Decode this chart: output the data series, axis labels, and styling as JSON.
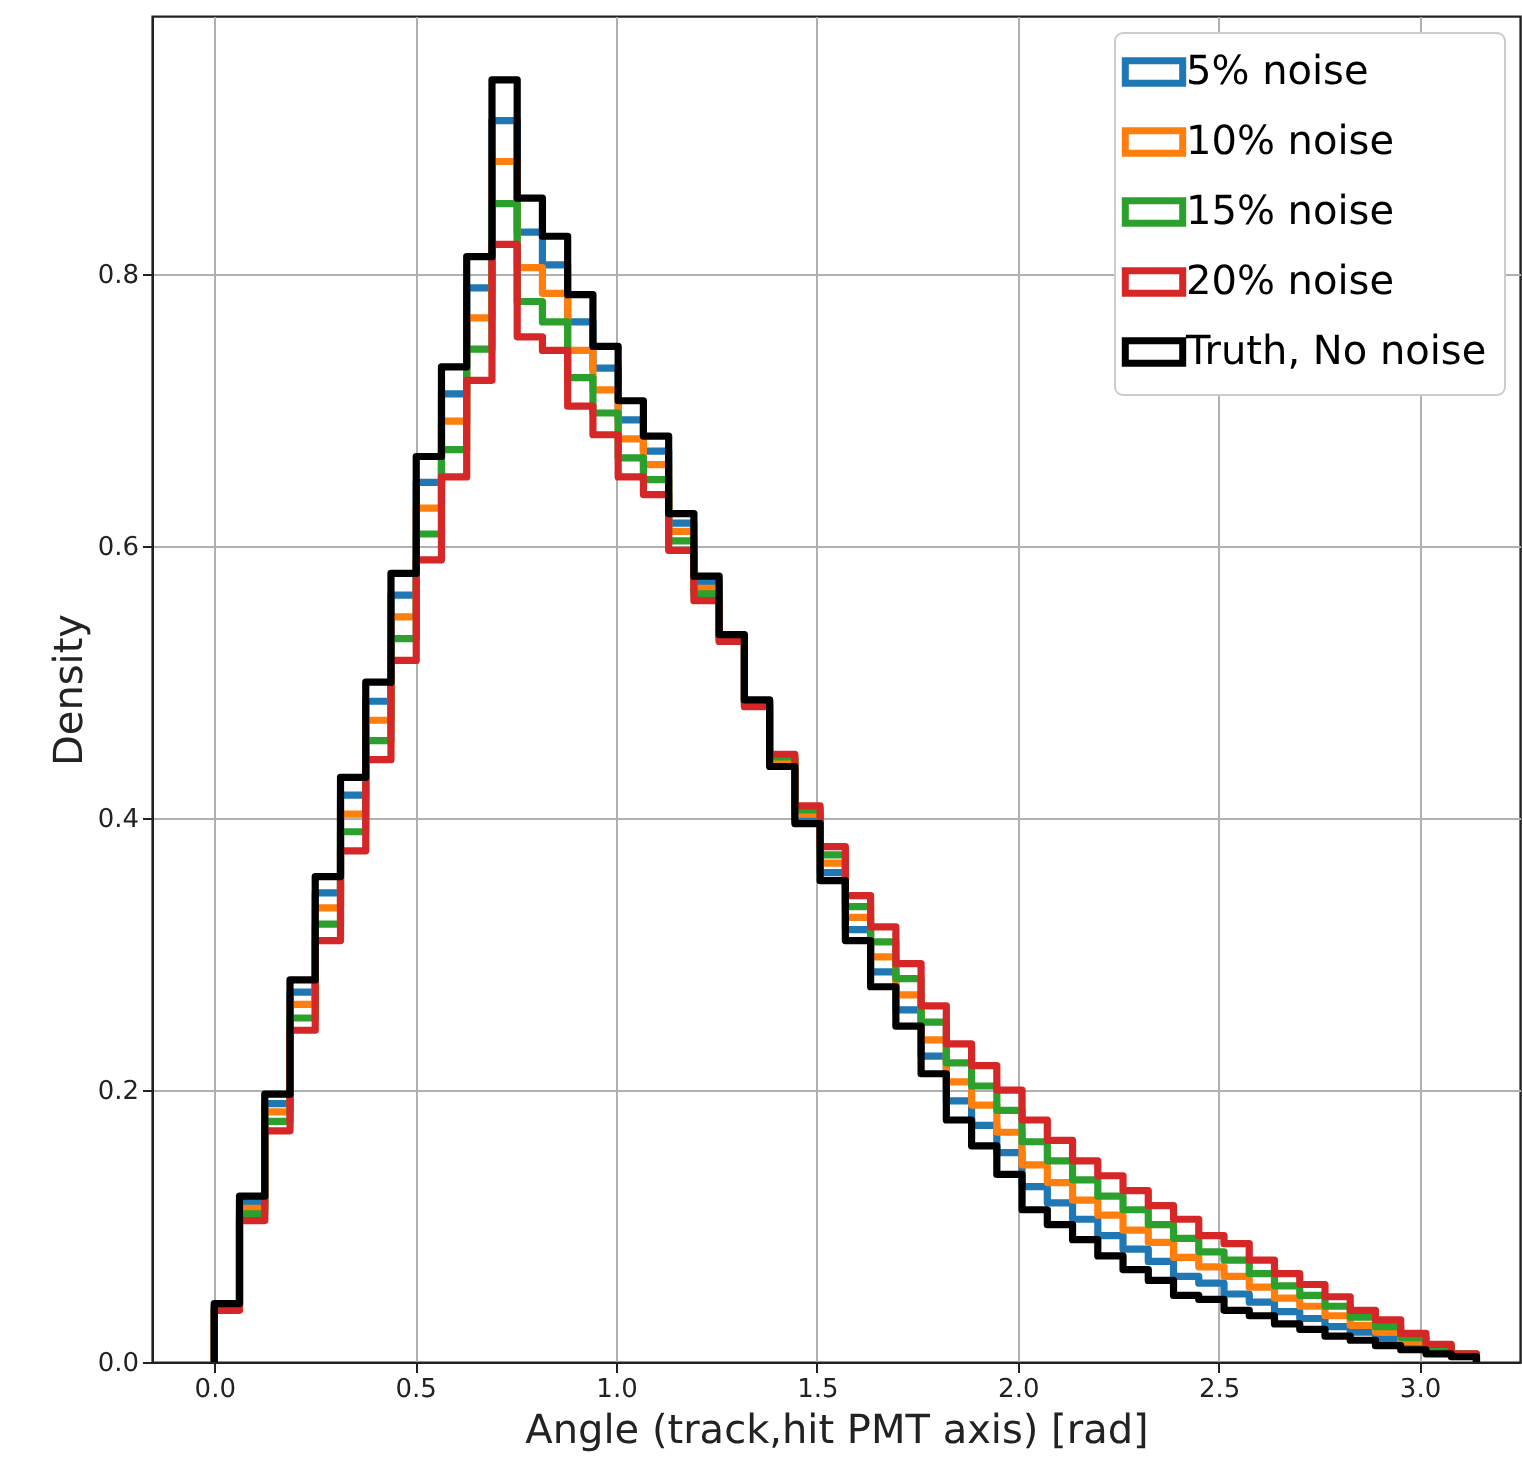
{
  "chart_data": {
    "type": "histogram",
    "xlabel": "Angle (track,hit PMT axis) [rad]",
    "ylabel": "Density",
    "bins": [
      0,
      0.0628,
      0.1257,
      0.1885,
      0.2513,
      0.3142,
      0.377,
      0.4398,
      0.5027,
      0.5655,
      0.6283,
      0.6912,
      0.754,
      0.8168,
      0.8796,
      0.9425,
      1.0053,
      1.0681,
      1.131,
      1.1938,
      1.2566,
      1.3195,
      1.3823,
      1.4451,
      1.508,
      1.5708,
      1.6336,
      1.6965,
      1.7593,
      1.8221,
      1.885,
      1.9478,
      2.0106,
      2.0735,
      2.1363,
      2.1991,
      2.2619,
      2.3248,
      2.3876,
      2.4504,
      2.5133,
      2.5761,
      2.6389,
      2.7018,
      2.7646,
      2.8274,
      2.8903,
      2.9531,
      3.0159,
      3.0788,
      3.1416
    ],
    "series": [
      {
        "name": "5% noise",
        "color": "#1f77b4",
        "values": [
          0.042,
          0.118,
          0.19,
          0.272,
          0.345,
          0.417,
          0.486,
          0.564,
          0.647,
          0.712,
          0.79,
          0.913,
          0.831,
          0.807,
          0.765,
          0.731,
          0.693,
          0.67,
          0.617,
          0.574,
          0.534,
          0.486,
          0.44,
          0.399,
          0.36,
          0.318,
          0.287,
          0.259,
          0.225,
          0.192,
          0.174,
          0.154,
          0.129,
          0.117,
          0.105,
          0.093,
          0.083,
          0.074,
          0.063,
          0.058,
          0.05,
          0.044,
          0.037,
          0.032,
          0.026,
          0.022,
          0.017,
          0.012,
          0.008,
          0.005
        ]
      },
      {
        "name": "10% noise",
        "color": "#ff7f0e",
        "values": [
          0.041,
          0.113,
          0.184,
          0.263,
          0.334,
          0.403,
          0.472,
          0.548,
          0.628,
          0.692,
          0.768,
          0.883,
          0.805,
          0.786,
          0.744,
          0.715,
          0.679,
          0.66,
          0.611,
          0.569,
          0.533,
          0.485,
          0.443,
          0.403,
          0.367,
          0.327,
          0.298,
          0.27,
          0.237,
          0.206,
          0.189,
          0.169,
          0.145,
          0.132,
          0.119,
          0.108,
          0.097,
          0.088,
          0.077,
          0.07,
          0.063,
          0.055,
          0.047,
          0.041,
          0.034,
          0.027,
          0.022,
          0.015,
          0.01,
          0.005
        ]
      },
      {
        "name": "15% noise",
        "color": "#2ca02c",
        "values": [
          0.039,
          0.109,
          0.177,
          0.253,
          0.322,
          0.39,
          0.457,
          0.532,
          0.609,
          0.671,
          0.745,
          0.852,
          0.78,
          0.765,
          0.724,
          0.698,
          0.665,
          0.649,
          0.604,
          0.565,
          0.531,
          0.483,
          0.445,
          0.406,
          0.373,
          0.335,
          0.309,
          0.282,
          0.25,
          0.22,
          0.203,
          0.185,
          0.162,
          0.148,
          0.134,
          0.122,
          0.112,
          0.101,
          0.091,
          0.081,
          0.075,
          0.065,
          0.056,
          0.049,
          0.041,
          0.033,
          0.026,
          0.018,
          0.011,
          0.006
        ]
      },
      {
        "name": "20% noise",
        "color": "#d62728",
        "values": [
          0.038,
          0.104,
          0.17,
          0.244,
          0.31,
          0.376,
          0.443,
          0.516,
          0.59,
          0.651,
          0.722,
          0.822,
          0.754,
          0.744,
          0.703,
          0.682,
          0.651,
          0.638,
          0.597,
          0.56,
          0.53,
          0.482,
          0.447,
          0.409,
          0.379,
          0.343,
          0.32,
          0.293,
          0.262,
          0.234,
          0.218,
          0.2,
          0.178,
          0.163,
          0.148,
          0.137,
          0.126,
          0.115,
          0.105,
          0.093,
          0.087,
          0.075,
          0.065,
          0.057,
          0.048,
          0.038,
          0.031,
          0.021,
          0.013,
          0.006
        ]
      },
      {
        "name": "Truth, No noise",
        "color": "#000000",
        "values": [
          0.043,
          0.122,
          0.197,
          0.281,
          0.357,
          0.43,
          0.5,
          0.58,
          0.666,
          0.732,
          0.813,
          0.943,
          0.856,
          0.828,
          0.785,
          0.747,
          0.707,
          0.681,
          0.624,
          0.578,
          0.535,
          0.487,
          0.438,
          0.396,
          0.354,
          0.31,
          0.276,
          0.247,
          0.212,
          0.178,
          0.159,
          0.138,
          0.112,
          0.101,
          0.09,
          0.078,
          0.068,
          0.06,
          0.049,
          0.046,
          0.038,
          0.034,
          0.028,
          0.024,
          0.019,
          0.016,
          0.012,
          0.009,
          0.006,
          0.004
        ]
      }
    ],
    "xlim": [
      -0.155,
      3.25
    ],
    "xticks": [
      {
        "value": 0,
        "label": "0.0"
      },
      {
        "value": 0.5,
        "label": "0.5"
      },
      {
        "value": 1,
        "label": "1.0"
      },
      {
        "value": 1.5,
        "label": "1.5"
      },
      {
        "value": 2,
        "label": "2.0"
      },
      {
        "value": 2.5,
        "label": "2.5"
      },
      {
        "value": 3,
        "label": "3.0"
      }
    ],
    "ylim": [
      0,
      0.99
    ],
    "yticks": [
      {
        "value": 0,
        "label": "0.0"
      },
      {
        "value": 0.2,
        "label": "0.2"
      },
      {
        "value": 0.4,
        "label": "0.4"
      },
      {
        "value": 0.6,
        "label": "0.6"
      },
      {
        "value": 0.8,
        "label": "0.8"
      }
    ],
    "grid": true,
    "legend": "top right"
  }
}
